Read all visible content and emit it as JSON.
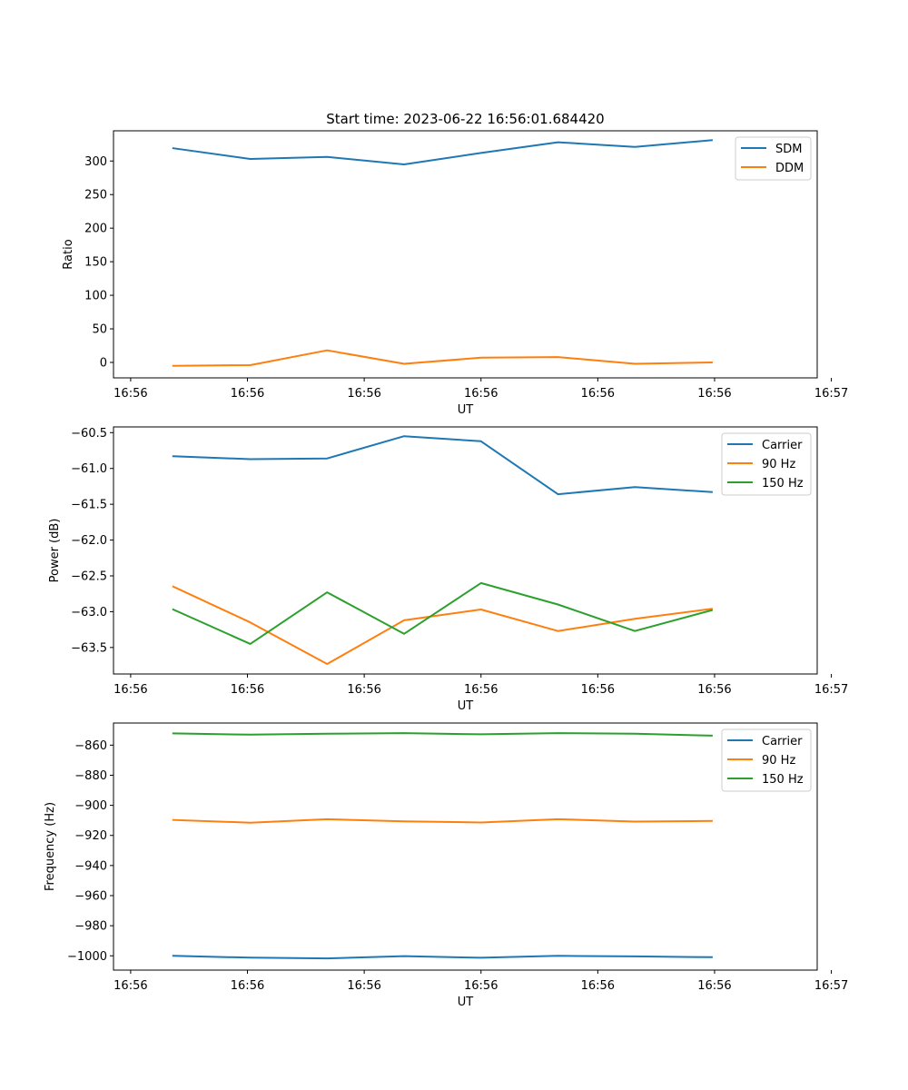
{
  "colors": {
    "blue": "#1f77b4",
    "orange": "#ff7f0e",
    "green": "#2ca02c"
  },
  "chart_data": [
    {
      "type": "line",
      "title": "Start time: 2023-06-22 16:56:01.684420",
      "xlabel": "UT",
      "ylabel": "Ratio",
      "x": [
        1,
        2,
        3,
        4,
        5,
        6,
        7,
        8
      ],
      "xlim": [
        0.223,
        9.37
      ],
      "xticks": [
        0.446,
        1.964,
        3.482,
        5.0,
        6.518,
        8.036,
        9.554
      ],
      "xtick_labels": [
        "16:56",
        "16:56",
        "16:56",
        "16:56",
        "16:56",
        "16:56",
        "16:57"
      ],
      "ylim": [
        -23,
        345
      ],
      "yticks": [
        0,
        50,
        100,
        150,
        200,
        250,
        300
      ],
      "ytick_labels": [
        "0",
        "50",
        "100",
        "150",
        "200",
        "250",
        "300"
      ],
      "legend_position": "top-right",
      "series": [
        {
          "name": "SDM",
          "color": "#1f77b4",
          "values": [
            319,
            303,
            306,
            295,
            312,
            328,
            321,
            331
          ]
        },
        {
          "name": "DDM",
          "color": "#ff7f0e",
          "values": [
            -5,
            -4,
            18,
            -2,
            7,
            8,
            -2,
            0
          ]
        }
      ]
    },
    {
      "type": "line",
      "title": "",
      "xlabel": "UT",
      "ylabel": "Power (dB)",
      "x": [
        1,
        2,
        3,
        4,
        5,
        6,
        7,
        8
      ],
      "xlim": [
        0.223,
        9.37
      ],
      "xticks": [
        0.446,
        1.964,
        3.482,
        5.0,
        6.518,
        8.036,
        9.554
      ],
      "xtick_labels": [
        "16:56",
        "16:56",
        "16:56",
        "16:56",
        "16:56",
        "16:56",
        "16:57"
      ],
      "ylim": [
        -63.87,
        -60.42
      ],
      "yticks": [
        -60.5,
        -61.0,
        -61.5,
        -62.0,
        -62.5,
        -63.0,
        -63.5
      ],
      "ytick_labels": [
        "−60.5",
        "−61.0",
        "−61.5",
        "−62.0",
        "−62.5",
        "−63.0",
        "−63.5"
      ],
      "legend_position": "top-right",
      "series": [
        {
          "name": "Carrier",
          "color": "#1f77b4",
          "values": [
            -60.83,
            -60.87,
            -60.86,
            -60.55,
            -60.62,
            -61.36,
            -61.26,
            -61.33
          ]
        },
        {
          "name": "90 Hz",
          "color": "#ff7f0e",
          "values": [
            -62.65,
            -63.15,
            -63.73,
            -63.12,
            -62.97,
            -63.27,
            -63.1,
            -62.96
          ]
        },
        {
          "name": "150 Hz",
          "color": "#2ca02c",
          "values": [
            -62.97,
            -63.45,
            -62.73,
            -63.31,
            -62.6,
            -62.9,
            -63.27,
            -62.98
          ]
        }
      ]
    },
    {
      "type": "line",
      "title": "",
      "xlabel": "UT",
      "ylabel": "Frequency (Hz)",
      "x": [
        1,
        2,
        3,
        4,
        5,
        6,
        7,
        8
      ],
      "xlim": [
        0.223,
        9.37
      ],
      "xticks": [
        0.446,
        1.964,
        3.482,
        5.0,
        6.518,
        8.036,
        9.554
      ],
      "xtick_labels": [
        "16:56",
        "16:56",
        "16:56",
        "16:56",
        "16:56",
        "16:56",
        "16:57"
      ],
      "ylim": [
        -1009.5,
        -845.3
      ],
      "yticks": [
        -860,
        -880,
        -900,
        -920,
        -940,
        -960,
        -980,
        -1000
      ],
      "ytick_labels": [
        "−860",
        "−880",
        "−900",
        "−920",
        "−940",
        "−960",
        "−980",
        "−1000"
      ],
      "legend_position": "top-right",
      "series": [
        {
          "name": "Carrier",
          "color": "#1f77b4",
          "values": [
            -1000.0,
            -1001.2,
            -1001.7,
            -1000.2,
            -1001.3,
            -1000.0,
            -1000.4,
            -1000.9
          ]
        },
        {
          "name": "90 Hz",
          "color": "#ff7f0e",
          "values": [
            -909.7,
            -911.5,
            -909.2,
            -910.6,
            -911.4,
            -909.2,
            -910.8,
            -910.4
          ]
        },
        {
          "name": "150 Hz",
          "color": "#2ca02c",
          "values": [
            -852.2,
            -853.0,
            -852.4,
            -852.0,
            -852.8,
            -852.0,
            -852.4,
            -853.7
          ]
        }
      ]
    }
  ]
}
